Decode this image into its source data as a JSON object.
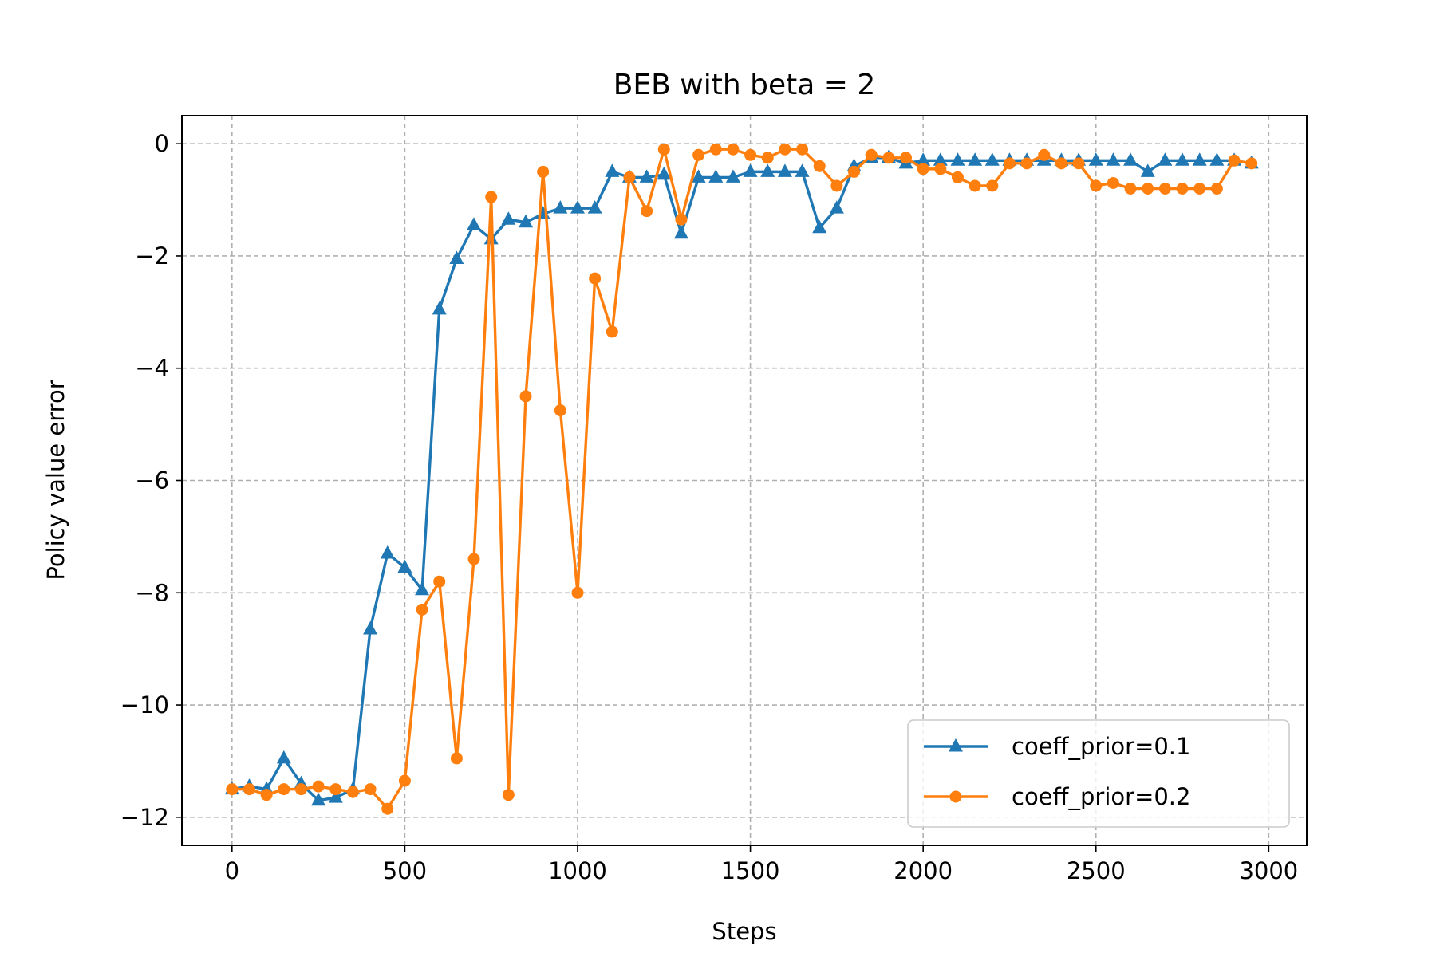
{
  "chart_data": {
    "type": "line",
    "title": "BEB with beta = 2",
    "xlabel": "Steps",
    "ylabel": "Policy value error",
    "xlim": [
      -145,
      3110
    ],
    "ylim": [
      -12.5,
      0.5
    ],
    "xticks": [
      0,
      500,
      1000,
      1500,
      2000,
      2500,
      3000
    ],
    "xtick_labels": [
      "0",
      "500",
      "1000",
      "1500",
      "2000",
      "2500",
      "3000"
    ],
    "yticks": [
      0,
      -2,
      -4,
      -6,
      -8,
      -10,
      -12
    ],
    "ytick_labels": [
      "0",
      "−2",
      "−4",
      "−6",
      "−8",
      "−10",
      "−12"
    ],
    "grid": true,
    "legend_position": "lower-right",
    "x": [
      0,
      50,
      100,
      150,
      200,
      250,
      300,
      350,
      400,
      450,
      500,
      550,
      600,
      650,
      700,
      750,
      800,
      850,
      900,
      950,
      1000,
      1050,
      1100,
      1150,
      1200,
      1250,
      1300,
      1350,
      1400,
      1450,
      1500,
      1550,
      1600,
      1650,
      1700,
      1750,
      1800,
      1850,
      1900,
      1950,
      2000,
      2050,
      2100,
      2150,
      2200,
      2250,
      2300,
      2350,
      2400,
      2450,
      2500,
      2550,
      2600,
      2650,
      2700,
      2750,
      2800,
      2850,
      2900,
      2950
    ],
    "series": [
      {
        "name": "coeff_prior=0.1",
        "color": "#1f77b4",
        "marker": "triangle",
        "values": [
          -11.5,
          -11.45,
          -11.5,
          -10.95,
          -11.4,
          -11.7,
          -11.65,
          -11.5,
          -8.65,
          -7.3,
          -7.55,
          -7.95,
          -2.95,
          -2.05,
          -1.45,
          -1.7,
          -1.35,
          -1.4,
          -1.25,
          -1.15,
          -1.15,
          -1.15,
          -0.5,
          -0.6,
          -0.6,
          -0.55,
          -1.6,
          -0.6,
          -0.6,
          -0.6,
          -0.5,
          -0.5,
          -0.5,
          -0.5,
          -1.5,
          -1.15,
          -0.4,
          -0.25,
          -0.25,
          -0.35,
          -0.3,
          -0.3,
          -0.3,
          -0.3,
          -0.3,
          -0.3,
          -0.3,
          -0.3,
          -0.3,
          -0.3,
          -0.3,
          -0.3,
          -0.3,
          -0.5,
          -0.3,
          -0.3,
          -0.3,
          -0.3,
          -0.3,
          -0.35
        ]
      },
      {
        "name": "coeff_prior=0.2",
        "color": "#ff7f0e",
        "marker": "circle",
        "values": [
          -11.5,
          -11.5,
          -11.6,
          -11.5,
          -11.5,
          -11.45,
          -11.5,
          -11.55,
          -11.5,
          -11.85,
          -11.35,
          -8.3,
          -7.8,
          -10.95,
          -7.4,
          -0.95,
          -11.6,
          -4.5,
          -0.5,
          -4.75,
          -8.0,
          -2.4,
          -3.35,
          -0.6,
          -1.2,
          -0.1,
          -1.35,
          -0.2,
          -0.1,
          -0.1,
          -0.2,
          -0.25,
          -0.1,
          -0.1,
          -0.4,
          -0.75,
          -0.5,
          -0.2,
          -0.25,
          -0.25,
          -0.45,
          -0.45,
          -0.6,
          -0.75,
          -0.75,
          -0.35,
          -0.35,
          -0.2,
          -0.35,
          -0.35,
          -0.75,
          -0.7,
          -0.8,
          -0.8,
          -0.8,
          -0.8,
          -0.8,
          -0.8,
          -0.3,
          -0.35
        ]
      }
    ]
  }
}
